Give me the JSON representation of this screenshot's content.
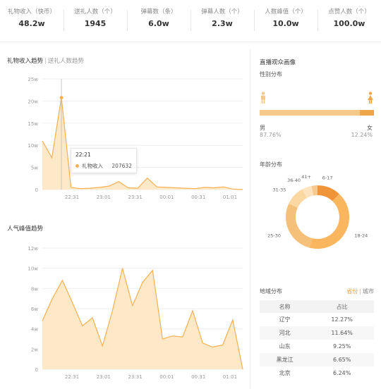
{
  "stats": [
    {
      "label": "礼物收入（快币）",
      "value": "48.2w"
    },
    {
      "label": "送礼人数（个）",
      "value": "1945"
    },
    {
      "label": "弹幕数（条）",
      "value": "6.0w"
    },
    {
      "label": "弹幕人数（个）",
      "value": "2.3w"
    },
    {
      "label": "人数峰值（个）",
      "value": "10.0w"
    },
    {
      "label": "点赞人数（个）",
      "value": "100.0w"
    }
  ],
  "gift_chart": {
    "tab_active": "礼物收入趋势",
    "tab_separator": "|",
    "tab_inactive": "送礼人数趋势",
    "tooltip": {
      "time": "22:21",
      "series": "礼物收入",
      "value": "207632"
    }
  },
  "peak_chart": {
    "title": "人气峰值趋势"
  },
  "audience": {
    "title": "直播观众画像",
    "gender": {
      "title": "性别分布",
      "male_label": "男",
      "male_pct": "87.76%",
      "female_label": "女",
      "female_pct": "12.24%",
      "male_color": "#f5c98a",
      "female_color": "#f0a64a",
      "male_icon": "male-person-icon",
      "female_icon": "female-person-icon"
    },
    "age": {
      "title": "年龄分布"
    },
    "region": {
      "title": "地域分布",
      "tab_active": "省份",
      "tab_separator": "|",
      "tab_inactive": "城市",
      "columns": [
        "名称",
        "占比"
      ],
      "rows": [
        {
          "name": "辽宁",
          "pct": "12.27%"
        },
        {
          "name": "河北",
          "pct": "11.64%"
        },
        {
          "name": "山东",
          "pct": "9.25%"
        },
        {
          "name": "黑龙江",
          "pct": "6.65%"
        },
        {
          "name": "北京",
          "pct": "6.24%"
        }
      ]
    }
  },
  "colors": {
    "accent": "#f7b052",
    "fill": "#fde9c7",
    "gridline": "#eeeeee"
  },
  "chart_data": [
    {
      "type": "area",
      "name": "gift-income-chart",
      "x_ticks": [
        "22:31",
        "23:01",
        "23:31",
        "00:01",
        "00:31",
        "01:01"
      ],
      "y_ticks": [
        "0",
        "5w",
        "10w",
        "15w",
        "20w",
        "25w"
      ],
      "ylim": [
        0,
        250000
      ],
      "series": [
        {
          "name": "礼物收入",
          "values": [
            110000,
            72000,
            207632,
            5000,
            2000,
            3000,
            5000,
            8000,
            18000,
            4000,
            3000,
            26000,
            6000,
            5000,
            4000,
            3000,
            2000,
            5000,
            4000,
            6000,
            1000,
            0
          ]
        }
      ]
    },
    {
      "type": "area",
      "name": "peak-viewers-chart",
      "x_ticks": [
        "22:31",
        "23:01",
        "23:31",
        "00:01",
        "00:31",
        "01:01"
      ],
      "y_ticks": [
        "0",
        "2w",
        "4w",
        "6w",
        "8w",
        "10w",
        "12w"
      ],
      "ylim": [
        0,
        120000
      ],
      "series": [
        {
          "name": "人气峰值",
          "values": [
            48000,
            70000,
            88000,
            66000,
            43000,
            51000,
            23000,
            58000,
            100000,
            63000,
            86000,
            98000,
            30000,
            33000,
            32000,
            58000,
            26000,
            22000,
            24000,
            49000,
            0
          ]
        }
      ]
    },
    {
      "type": "pie",
      "name": "age-distribution-chart",
      "categories": [
        "6-17",
        "18-24",
        "25-30",
        "31-35",
        "36-40",
        "41+"
      ],
      "values": [
        12,
        42,
        28,
        10,
        5,
        3
      ],
      "colors": [
        "#f0943a",
        "#f9b65e",
        "#f5c07a",
        "#fbd7a2",
        "#fce3bd",
        "#f7c98f"
      ]
    }
  ]
}
